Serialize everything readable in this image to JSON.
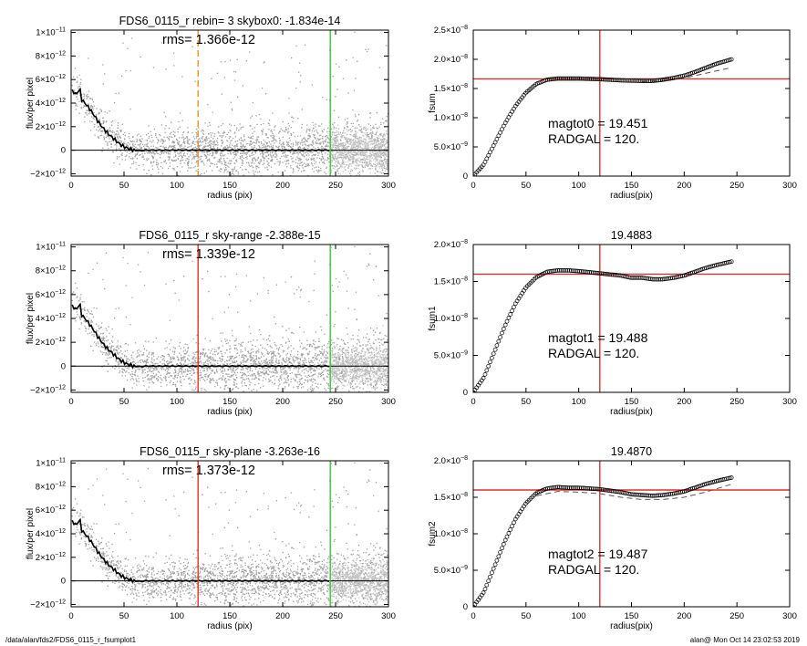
{
  "footer": {
    "left": "/data/alan/fds2/FDS6_0115_r_fsumplot1",
    "right": "alan@  Mon Oct 14 23:02:53 2019"
  },
  "colors": {
    "scatter": "#a0a0a0",
    "profile": "#000000",
    "green_line": "#33cc33",
    "red_line": "#e03030",
    "orange_dash": "#e8922a",
    "light_points": "#c8c8c8"
  },
  "chart_data": [
    {
      "id": "profile-1",
      "type": "scatter",
      "title": "FDS6_0115_r rebin= 3    skybox0: -1.834e-14",
      "rms_text": "rms= 1.366e-12",
      "xlabel": "radius (pix)",
      "ylabel": "flux/per pixel",
      "xlim": [
        0,
        300
      ],
      "ylim": [
        -2.2e-12,
        1.02e-11
      ],
      "xticks": [
        0,
        50,
        100,
        150,
        200,
        250,
        300
      ],
      "xtick_labels": [
        "0",
        "50",
        "100",
        "150",
        "200",
        "250",
        "300"
      ],
      "yticks": [
        -2e-12,
        0,
        2e-12,
        4e-12,
        6e-12,
        8e-12,
        1e-11
      ],
      "ytick_labels": [
        {
          "mant": "−2×10",
          "exp": "−12"
        },
        {
          "mant": "0",
          "exp": ""
        },
        {
          "mant": "2×10",
          "exp": "−12"
        },
        {
          "mant": "4×10",
          "exp": "−12"
        },
        {
          "mant": "6×10",
          "exp": "−12"
        },
        {
          "mant": "8×10",
          "exp": "−12"
        },
        {
          "mant": "1×10",
          "exp": "−11"
        }
      ],
      "profile_x": [
        2,
        5,
        8,
        10,
        15,
        20,
        25,
        30,
        35,
        40,
        45,
        50,
        55,
        60,
        65,
        70,
        80,
        100,
        120,
        150,
        200,
        245
      ],
      "profile_y": [
        5e-12,
        4.7e-12,
        5.3e-12,
        4.3e-12,
        3.8e-12,
        3.2e-12,
        2.5e-12,
        1.9e-12,
        1.4e-12,
        1e-12,
        6e-13,
        3e-13,
        1e-13,
        0.0,
        -5e-14,
        0.0,
        0.0,
        0.0,
        0.0,
        0.0,
        0.0,
        0.0
      ],
      "vlines": [
        {
          "x": 120,
          "color": "#e8922a",
          "style": "dashed"
        },
        {
          "x": 245,
          "color": "#33cc33",
          "style": "solid"
        }
      ],
      "hlines": [
        {
          "y": 0,
          "color": "#000000"
        }
      ]
    },
    {
      "id": "fsum-0",
      "type": "scatter",
      "title": "",
      "xlabel": "radius(pix)",
      "ylabel": "fsum",
      "xlim": [
        0,
        300
      ],
      "ylim": [
        0,
        2.5e-08
      ],
      "xticks": [
        0,
        50,
        100,
        150,
        200,
        250,
        300
      ],
      "xtick_labels": [
        "0",
        "50",
        "100",
        "150",
        "200",
        "250",
        "300"
      ],
      "yticks": [
        0,
        5e-09,
        1e-08,
        1.5e-08,
        2e-08,
        2.5e-08
      ],
      "ytick_labels": [
        {
          "mant": "0",
          "exp": ""
        },
        {
          "mant": "5.0×10",
          "exp": "−9"
        },
        {
          "mant": "1.0×10",
          "exp": "−8"
        },
        {
          "mant": "1.5×10",
          "exp": "−8"
        },
        {
          "mant": "2.0×10",
          "exp": "−8"
        },
        {
          "mant": "2.5×10",
          "exp": "−8"
        }
      ],
      "curve_x": [
        0,
        10,
        20,
        30,
        40,
        50,
        60,
        70,
        80,
        90,
        100,
        120,
        140,
        160,
        170,
        180,
        190,
        200,
        210,
        220,
        230,
        245
      ],
      "curve_y": [
        0.0,
        2e-09,
        5.5e-09,
        9e-09,
        1.2e-08,
        1.43e-08,
        1.58e-08,
        1.65e-08,
        1.67e-08,
        1.67e-08,
        1.67e-08,
        1.66e-08,
        1.64e-08,
        1.63e-08,
        1.63e-08,
        1.65e-08,
        1.68e-08,
        1.72e-08,
        1.78e-08,
        1.85e-08,
        1.92e-08,
        2e-08
      ],
      "dashed_x": [
        160,
        180,
        200,
        220,
        245
      ],
      "dashed_y": [
        1.62e-08,
        1.63e-08,
        1.68e-08,
        1.76e-08,
        1.86e-08
      ],
      "vlines": [
        {
          "x": 120,
          "color": "#e03030",
          "style": "solid"
        }
      ],
      "hlines": [
        {
          "y": 1.665e-08,
          "color": "#e03030"
        }
      ],
      "info_lines": [
        "magtot0 =  19.451",
        "RADGAL =    120."
      ]
    },
    {
      "id": "profile-2",
      "type": "scatter",
      "title": "FDS6_0115_r sky-range -2.388e-15",
      "rms_text": "rms= 1.339e-12",
      "xlabel": "radius (pix)",
      "ylabel": "flux/per pixel",
      "xlim": [
        0,
        300
      ],
      "ylim": [
        -2.2e-12,
        1.02e-11
      ],
      "xticks": [
        0,
        50,
        100,
        150,
        200,
        250,
        300
      ],
      "xtick_labels": [
        "0",
        "50",
        "100",
        "150",
        "200",
        "250",
        "300"
      ],
      "yticks": [
        -2e-12,
        0,
        2e-12,
        4e-12,
        6e-12,
        8e-12,
        1e-11
      ],
      "ytick_labels": [
        {
          "mant": "−2×10",
          "exp": "−12"
        },
        {
          "mant": "0",
          "exp": ""
        },
        {
          "mant": "2×10",
          "exp": "−12"
        },
        {
          "mant": "4×10",
          "exp": "−12"
        },
        {
          "mant": "6×10",
          "exp": "−12"
        },
        {
          "mant": "8×10",
          "exp": "−12"
        },
        {
          "mant": "1×10",
          "exp": "−11"
        }
      ],
      "profile_x": [
        2,
        5,
        8,
        10,
        15,
        20,
        25,
        30,
        35,
        40,
        45,
        50,
        55,
        60,
        65,
        70,
        80,
        100,
        120,
        150,
        200,
        245
      ],
      "profile_y": [
        5e-12,
        4.7e-12,
        5.3e-12,
        4.3e-12,
        3.8e-12,
        3.2e-12,
        2.5e-12,
        1.9e-12,
        1.4e-12,
        1e-12,
        6e-13,
        3e-13,
        1e-13,
        0.0,
        -5e-14,
        0.0,
        0.0,
        0.0,
        0.0,
        0.0,
        0.0,
        0.0
      ],
      "vlines": [
        {
          "x": 120,
          "color": "#e03030",
          "style": "solid"
        },
        {
          "x": 245,
          "color": "#33cc33",
          "style": "solid"
        }
      ],
      "hlines": [
        {
          "y": 0,
          "color": "#000000"
        }
      ]
    },
    {
      "id": "fsum-1",
      "type": "scatter",
      "title": "19.4883",
      "xlabel": "radius(pix)",
      "ylabel": "fsum1",
      "xlim": [
        0,
        300
      ],
      "ylim": [
        0,
        2e-08
      ],
      "xticks": [
        0,
        50,
        100,
        150,
        200,
        250,
        300
      ],
      "xtick_labels": [
        "0",
        "50",
        "100",
        "150",
        "200",
        "250",
        "300"
      ],
      "yticks": [
        0,
        5e-09,
        1e-08,
        1.5e-08,
        2e-08
      ],
      "ytick_labels": [
        {
          "mant": "0",
          "exp": ""
        },
        {
          "mant": "5.0×10",
          "exp": "−9"
        },
        {
          "mant": "1.0×10",
          "exp": "−8"
        },
        {
          "mant": "1.5×10",
          "exp": "−8"
        },
        {
          "mant": "2.0×10",
          "exp": "−8"
        }
      ],
      "curve_x": [
        0,
        10,
        20,
        30,
        40,
        50,
        60,
        70,
        80,
        90,
        100,
        120,
        140,
        150,
        160,
        170,
        180,
        190,
        200,
        210,
        220,
        230,
        245
      ],
      "curve_y": [
        0.0,
        2e-09,
        5.5e-09,
        9e-09,
        1.2e-08,
        1.42e-08,
        1.56e-08,
        1.63e-08,
        1.65e-08,
        1.65e-08,
        1.64e-08,
        1.61e-08,
        1.58e-08,
        1.55e-08,
        1.55e-08,
        1.53e-08,
        1.53e-08,
        1.55e-08,
        1.58e-08,
        1.63e-08,
        1.68e-08,
        1.72e-08,
        1.77e-08
      ],
      "dashed_x": [],
      "dashed_y": [],
      "vlines": [
        {
          "x": 120,
          "color": "#e03030",
          "style": "solid"
        }
      ],
      "hlines": [
        {
          "y": 1.6e-08,
          "color": "#e03030"
        }
      ],
      "info_lines": [
        "magtot1 =  19.488",
        "RADGAL =    120."
      ]
    },
    {
      "id": "profile-3",
      "type": "scatter",
      "title": "FDS6_0115_r sky-plane -3.263e-16",
      "rms_text": "rms= 1.373e-12",
      "xlabel": "radius (pix)",
      "ylabel": "flux/per pixel",
      "xlim": [
        0,
        300
      ],
      "ylim": [
        -2.2e-12,
        1.02e-11
      ],
      "xticks": [
        0,
        50,
        100,
        150,
        200,
        250,
        300
      ],
      "xtick_labels": [
        "0",
        "50",
        "100",
        "150",
        "200",
        "250",
        "300"
      ],
      "yticks": [
        -2e-12,
        0,
        2e-12,
        4e-12,
        6e-12,
        8e-12,
        1e-11
      ],
      "ytick_labels": [
        {
          "mant": "−2×10",
          "exp": "−12"
        },
        {
          "mant": "0",
          "exp": ""
        },
        {
          "mant": "2×10",
          "exp": "−12"
        },
        {
          "mant": "4×10",
          "exp": "−12"
        },
        {
          "mant": "6×10",
          "exp": "−12"
        },
        {
          "mant": "8×10",
          "exp": "−12"
        },
        {
          "mant": "1×10",
          "exp": "−11"
        }
      ],
      "profile_x": [
        2,
        5,
        8,
        10,
        15,
        20,
        25,
        30,
        35,
        40,
        45,
        50,
        55,
        60,
        65,
        70,
        80,
        100,
        120,
        150,
        200,
        245
      ],
      "profile_y": [
        5e-12,
        4.7e-12,
        5.3e-12,
        4.3e-12,
        3.8e-12,
        3.2e-12,
        2.5e-12,
        1.9e-12,
        1.4e-12,
        1e-12,
        6e-13,
        3e-13,
        1e-13,
        0.0,
        -5e-14,
        0.0,
        0.0,
        0.0,
        0.0,
        0.0,
        0.0,
        0.0
      ],
      "vlines": [
        {
          "x": 120,
          "color": "#e03030",
          "style": "solid"
        },
        {
          "x": 245,
          "color": "#33cc33",
          "style": "solid"
        }
      ],
      "hlines": [
        {
          "y": 0,
          "color": "#000000"
        }
      ]
    },
    {
      "id": "fsum-2",
      "type": "scatter",
      "title": "19.4870",
      "xlabel": "radius(pix)",
      "ylabel": "fsum2",
      "xlim": [
        0,
        300
      ],
      "ylim": [
        0,
        2e-08
      ],
      "xticks": [
        0,
        50,
        100,
        150,
        200,
        250,
        300
      ],
      "xtick_labels": [
        "0",
        "50",
        "100",
        "150",
        "200",
        "250",
        "300"
      ],
      "yticks": [
        0,
        5e-09,
        1e-08,
        1.5e-08,
        2e-08
      ],
      "ytick_labels": [
        {
          "mant": "0",
          "exp": ""
        },
        {
          "mant": "5.0×10",
          "exp": "−9"
        },
        {
          "mant": "1.0×10",
          "exp": "−8"
        },
        {
          "mant": "1.5×10",
          "exp": "−8"
        },
        {
          "mant": "2.0×10",
          "exp": "−8"
        }
      ],
      "curve_x": [
        0,
        10,
        20,
        30,
        40,
        50,
        60,
        70,
        80,
        90,
        100,
        120,
        140,
        150,
        160,
        170,
        180,
        190,
        200,
        210,
        220,
        230,
        245
      ],
      "curve_y": [
        0.0,
        2e-09,
        5.5e-09,
        9e-09,
        1.2e-08,
        1.42e-08,
        1.56e-08,
        1.62e-08,
        1.64e-08,
        1.63e-08,
        1.63e-08,
        1.61e-08,
        1.57e-08,
        1.54e-08,
        1.53e-08,
        1.52e-08,
        1.53e-08,
        1.55e-08,
        1.58e-08,
        1.63e-08,
        1.68e-08,
        1.72e-08,
        1.77e-08
      ],
      "dashed_x": [
        60,
        80,
        100,
        120,
        140,
        160,
        180,
        200,
        220,
        245
      ],
      "dashed_y": [
        1.52e-08,
        1.58e-08,
        1.57e-08,
        1.55e-08,
        1.5e-08,
        1.47e-08,
        1.47e-08,
        1.5e-08,
        1.57e-08,
        1.68e-08
      ],
      "vlines": [
        {
          "x": 120,
          "color": "#e03030",
          "style": "solid"
        }
      ],
      "hlines": [
        {
          "y": 1.6e-08,
          "color": "#e03030"
        }
      ],
      "info_lines": [
        "magtot2 =  19.487",
        "RADGAL =    120."
      ]
    }
  ]
}
